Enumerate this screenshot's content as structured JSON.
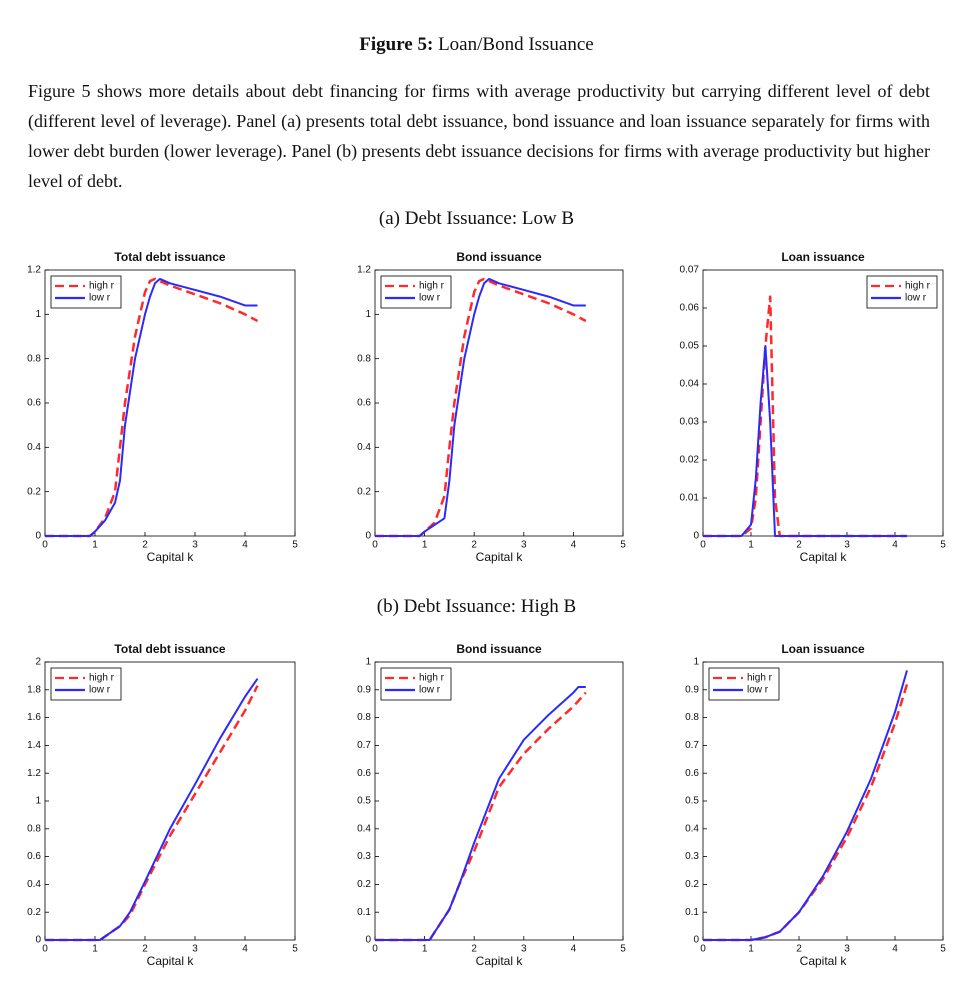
{
  "figure_label": "Figure 5:",
  "figure_title": "Loan/Bond Issuance",
  "paragraph": "Figure 5 shows more details about debt financing for firms with average productivity but carrying different level of debt (different level of leverage).  Panel (a) presents total debt issuance, bond issuance and loan issuance separately for firms with lower debt burden (lower leverage). Panel (b) presents debt issuance decisions for firms with average productivity but higher level of debt.",
  "panels": [
    "(a) Debt Issuance: Low B",
    "(b) Debt Issuance: High B"
  ],
  "chart_data": [
    {
      "type": "line",
      "title": "Total debt issuance",
      "x_label": "Capital k",
      "legend": "upper left",
      "xlim": [
        0,
        5
      ],
      "xticks": [
        0,
        1,
        2,
        3,
        4,
        5
      ],
      "ylim": [
        0,
        1.2
      ],
      "yticks": [
        0,
        0.2,
        0.4,
        0.6,
        0.8,
        1,
        1.2
      ],
      "x": [
        0,
        0.5,
        0.9,
        1.0,
        1.2,
        1.4,
        1.5,
        1.6,
        1.8,
        2.0,
        2.1,
        2.2,
        2.3,
        2.5,
        3.0,
        3.5,
        4.0,
        4.25
      ],
      "series": [
        {
          "name": "high r",
          "color": "#ff2a2a",
          "dash": true,
          "values": [
            0,
            0,
            0,
            0.02,
            0.08,
            0.2,
            0.4,
            0.6,
            0.9,
            1.1,
            1.15,
            1.16,
            1.15,
            1.13,
            1.09,
            1.05,
            1.0,
            0.97
          ]
        },
        {
          "name": "low r",
          "color": "#2a2aff",
          "dash": false,
          "values": [
            0,
            0,
            0,
            0.02,
            0.07,
            0.15,
            0.25,
            0.5,
            0.8,
            1.0,
            1.08,
            1.14,
            1.16,
            1.14,
            1.11,
            1.08,
            1.04,
            1.04
          ]
        }
      ]
    },
    {
      "type": "line",
      "title": "Bond issuance",
      "x_label": "Capital k",
      "legend": "upper left",
      "xlim": [
        0,
        5
      ],
      "xticks": [
        0,
        1,
        2,
        3,
        4,
        5
      ],
      "ylim": [
        0,
        1.2
      ],
      "yticks": [
        0,
        0.2,
        0.4,
        0.6,
        0.8,
        1,
        1.2
      ],
      "x": [
        0,
        0.5,
        0.9,
        1.0,
        1.2,
        1.4,
        1.5,
        1.6,
        1.8,
        2.0,
        2.1,
        2.2,
        2.3,
        2.5,
        3.0,
        3.5,
        4.0,
        4.25
      ],
      "series": [
        {
          "name": "high r",
          "color": "#ff2a2a",
          "dash": true,
          "values": [
            0,
            0,
            0,
            0.02,
            0.06,
            0.18,
            0.4,
            0.6,
            0.9,
            1.1,
            1.15,
            1.16,
            1.15,
            1.13,
            1.09,
            1.05,
            1.0,
            0.97
          ]
        },
        {
          "name": "low r",
          "color": "#2a2aff",
          "dash": false,
          "values": [
            0,
            0,
            0,
            0.02,
            0.05,
            0.08,
            0.25,
            0.5,
            0.8,
            1.0,
            1.08,
            1.14,
            1.16,
            1.14,
            1.11,
            1.08,
            1.04,
            1.04
          ]
        }
      ]
    },
    {
      "type": "line",
      "title": "Loan issuance",
      "x_label": "Capital k",
      "legend": "upper right",
      "xlim": [
        0,
        5
      ],
      "xticks": [
        0,
        1,
        2,
        3,
        4,
        5
      ],
      "ylim": [
        0,
        0.07
      ],
      "yticks": [
        0,
        0.01,
        0.02,
        0.03,
        0.04,
        0.05,
        0.06,
        0.07
      ],
      "x": [
        0,
        0.5,
        0.8,
        1.0,
        1.1,
        1.2,
        1.3,
        1.4,
        1.5,
        1.6,
        2,
        3,
        4,
        4.25
      ],
      "series": [
        {
          "name": "high r",
          "color": "#ff2a2a",
          "dash": true,
          "values": [
            0,
            0,
            0,
            0.002,
            0.01,
            0.03,
            0.05,
            0.063,
            0.01,
            0,
            0,
            0,
            0,
            0
          ]
        },
        {
          "name": "low r",
          "color": "#2a2aff",
          "dash": false,
          "values": [
            0,
            0,
            0,
            0.003,
            0.015,
            0.035,
            0.05,
            0.03,
            0,
            0,
            0,
            0,
            0,
            0
          ]
        }
      ]
    },
    {
      "type": "line",
      "title": "Total debt issuance",
      "x_label": "Capital k",
      "legend": "upper left",
      "xlim": [
        0,
        5
      ],
      "xticks": [
        0,
        1,
        2,
        3,
        4,
        5
      ],
      "ylim": [
        0,
        2
      ],
      "yticks": [
        0,
        0.2,
        0.4,
        0.6,
        0.8,
        1,
        1.2,
        1.4,
        1.6,
        1.8,
        2
      ],
      "x": [
        0,
        0.5,
        1.0,
        1.1,
        1.5,
        1.7,
        2,
        2.5,
        3,
        3.5,
        4,
        4.25
      ],
      "series": [
        {
          "name": "high r",
          "color": "#ff2a2a",
          "dash": true,
          "values": [
            0,
            0,
            0,
            0,
            0.1,
            0.18,
            0.4,
            0.75,
            1.05,
            1.35,
            1.65,
            1.83
          ]
        },
        {
          "name": "low r",
          "color": "#2a2aff",
          "dash": false,
          "values": [
            0,
            0,
            0,
            0,
            0.1,
            0.2,
            0.42,
            0.8,
            1.12,
            1.45,
            1.75,
            1.88
          ]
        }
      ]
    },
    {
      "type": "line",
      "title": "Bond issuance",
      "x_label": "Capital k",
      "legend": "upper left",
      "xlim": [
        0,
        5
      ],
      "xticks": [
        0,
        1,
        2,
        3,
        4,
        5
      ],
      "ylim": [
        0,
        1
      ],
      "yticks": [
        0,
        0.1,
        0.2,
        0.3,
        0.4,
        0.5,
        0.6,
        0.7,
        0.8,
        0.9,
        1
      ],
      "x": [
        0,
        0.5,
        1.0,
        1.1,
        1.5,
        1.7,
        2,
        2.5,
        3,
        3.5,
        4,
        4.1,
        4.25
      ],
      "series": [
        {
          "name": "high r",
          "color": "#ff2a2a",
          "dash": true,
          "values": [
            0,
            0,
            0,
            0,
            0.11,
            0.2,
            0.32,
            0.55,
            0.67,
            0.76,
            0.84,
            0.86,
            0.89
          ]
        },
        {
          "name": "low r",
          "color": "#2a2aff",
          "dash": false,
          "values": [
            0,
            0,
            0,
            0,
            0.11,
            0.2,
            0.35,
            0.58,
            0.72,
            0.81,
            0.89,
            0.91,
            0.91
          ]
        }
      ]
    },
    {
      "type": "line",
      "title": "Loan issuance",
      "x_label": "Capital k",
      "legend": "upper left",
      "xlim": [
        0,
        5
      ],
      "xticks": [
        0,
        1,
        2,
        3,
        4,
        5
      ],
      "ylim": [
        0,
        1
      ],
      "yticks": [
        0,
        0.1,
        0.2,
        0.3,
        0.4,
        0.5,
        0.6,
        0.7,
        0.8,
        0.9,
        1
      ],
      "x": [
        0,
        0.5,
        1.0,
        1.3,
        1.6,
        2,
        2.5,
        3,
        3.5,
        4,
        4.25
      ],
      "series": [
        {
          "name": "high r",
          "color": "#ff2a2a",
          "dash": true,
          "values": [
            0,
            0,
            0,
            0.01,
            0.03,
            0.1,
            0.22,
            0.37,
            0.55,
            0.78,
            0.92
          ]
        },
        {
          "name": "low r",
          "color": "#2a2aff",
          "dash": false,
          "values": [
            0,
            0,
            0,
            0.01,
            0.03,
            0.1,
            0.23,
            0.39,
            0.58,
            0.82,
            0.97
          ]
        }
      ]
    }
  ]
}
